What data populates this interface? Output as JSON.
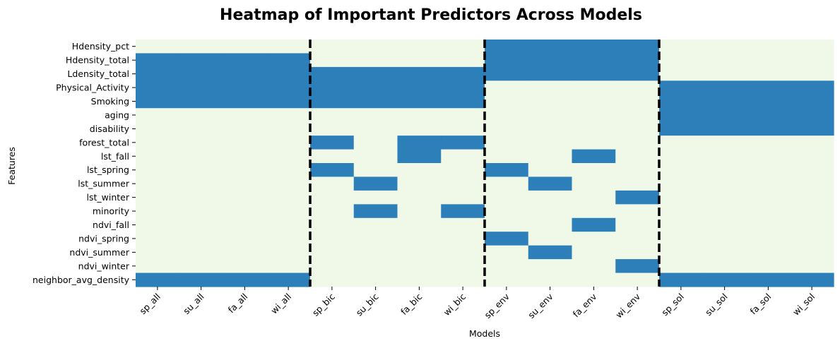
{
  "chart_data": {
    "type": "heatmap",
    "title": "Heatmap of Important Predictors Across Models",
    "xlabel": "Models",
    "ylabel": "Features",
    "x_categories": [
      "sp_all",
      "su_all",
      "fa_all",
      "wi_all",
      "sp_bic",
      "su_bic",
      "fa_bic",
      "wi_bic",
      "sp_env",
      "su_env",
      "fa_env",
      "wi_env",
      "sp_sol",
      "su_sol",
      "fa_sol",
      "wi_sol"
    ],
    "y_categories": [
      "Hdensity_pct",
      "Hdensity_total",
      "Ldensity_total",
      "Physical_Activity",
      "Smoking",
      "aging",
      "disability",
      "forest_total",
      "lst_fall",
      "lst_spring",
      "lst_summer",
      "lst_winter",
      "minority",
      "ndvi_fall",
      "ndvi_spring",
      "ndvi_summer",
      "ndvi_winter",
      "neighbor_avg_density"
    ],
    "values": [
      [
        0,
        0,
        0,
        0,
        0,
        0,
        0,
        0,
        1,
        1,
        1,
        1,
        0,
        0,
        0,
        0
      ],
      [
        1,
        1,
        1,
        1,
        0,
        0,
        0,
        0,
        1,
        1,
        1,
        1,
        0,
        0,
        0,
        0
      ],
      [
        1,
        1,
        1,
        1,
        1,
        1,
        1,
        1,
        1,
        1,
        1,
        1,
        0,
        0,
        0,
        0
      ],
      [
        1,
        1,
        1,
        1,
        1,
        1,
        1,
        1,
        0,
        0,
        0,
        0,
        1,
        1,
        1,
        1
      ],
      [
        1,
        1,
        1,
        1,
        1,
        1,
        1,
        1,
        0,
        0,
        0,
        0,
        1,
        1,
        1,
        1
      ],
      [
        0,
        0,
        0,
        0,
        0,
        0,
        0,
        0,
        0,
        0,
        0,
        0,
        1,
        1,
        1,
        1
      ],
      [
        0,
        0,
        0,
        0,
        0,
        0,
        0,
        0,
        0,
        0,
        0,
        0,
        1,
        1,
        1,
        1
      ],
      [
        0,
        0,
        0,
        0,
        1,
        0,
        1,
        1,
        0,
        0,
        0,
        0,
        0,
        0,
        0,
        0
      ],
      [
        0,
        0,
        0,
        0,
        0,
        0,
        1,
        0,
        0,
        0,
        1,
        0,
        0,
        0,
        0,
        0
      ],
      [
        0,
        0,
        0,
        0,
        1,
        0,
        0,
        0,
        1,
        0,
        0,
        0,
        0,
        0,
        0,
        0
      ],
      [
        0,
        0,
        0,
        0,
        0,
        1,
        0,
        0,
        0,
        1,
        0,
        0,
        0,
        0,
        0,
        0
      ],
      [
        0,
        0,
        0,
        0,
        0,
        0,
        0,
        0,
        0,
        0,
        0,
        1,
        0,
        0,
        0,
        0
      ],
      [
        0,
        0,
        0,
        0,
        0,
        1,
        0,
        1,
        0,
        0,
        0,
        0,
        0,
        0,
        0,
        0
      ],
      [
        0,
        0,
        0,
        0,
        0,
        0,
        0,
        0,
        0,
        0,
        1,
        0,
        0,
        0,
        0,
        0
      ],
      [
        0,
        0,
        0,
        0,
        0,
        0,
        0,
        0,
        1,
        0,
        0,
        0,
        0,
        0,
        0,
        0
      ],
      [
        0,
        0,
        0,
        0,
        0,
        0,
        0,
        0,
        0,
        1,
        0,
        0,
        0,
        0,
        0,
        0
      ],
      [
        0,
        0,
        0,
        0,
        0,
        0,
        0,
        0,
        0,
        0,
        0,
        1,
        0,
        0,
        0,
        0
      ],
      [
        1,
        1,
        1,
        1,
        0,
        0,
        0,
        0,
        0,
        0,
        0,
        0,
        1,
        1,
        1,
        1
      ]
    ],
    "colors": {
      "off": "#f0f8e8",
      "on": "#2c7fb8",
      "separator": "#000000"
    },
    "group_separators_after_column": [
      4,
      8,
      12
    ],
    "grid": false,
    "legend": "none"
  }
}
